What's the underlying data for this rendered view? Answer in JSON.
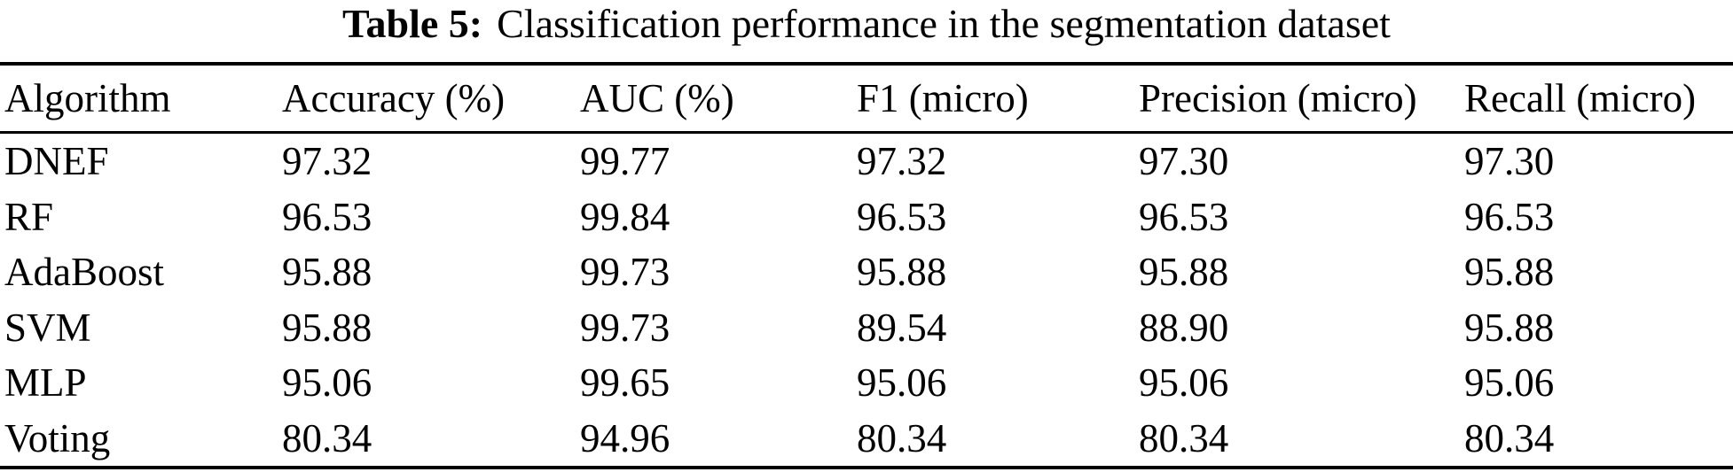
{
  "caption": {
    "label": "Table 5:",
    "text": "Classification performance in the segmentation dataset"
  },
  "table": {
    "columns": [
      "Algorithm",
      "Accuracy (%)",
      "AUC (%)",
      "F1 (micro)",
      "Precision (micro)",
      "Recall (micro)"
    ],
    "rows": [
      [
        "DNEF",
        "97.32",
        "99.77",
        "97.32",
        "97.30",
        "97.30"
      ],
      [
        "RF",
        "96.53",
        "99.84",
        "96.53",
        "96.53",
        "96.53"
      ],
      [
        "AdaBoost",
        "95.88",
        "99.73",
        "95.88",
        "95.88",
        "95.88"
      ],
      [
        "SVM",
        "95.88",
        "99.73",
        "89.54",
        "88.90",
        "95.88"
      ],
      [
        "MLP",
        "95.06",
        "99.65",
        "95.06",
        "95.06",
        "95.06"
      ],
      [
        "Voting",
        "80.34",
        "94.96",
        "80.34",
        "80.34",
        "80.34"
      ]
    ]
  },
  "colors": {
    "text": "#000000",
    "background": "#ffffff",
    "rule": "#000000"
  }
}
